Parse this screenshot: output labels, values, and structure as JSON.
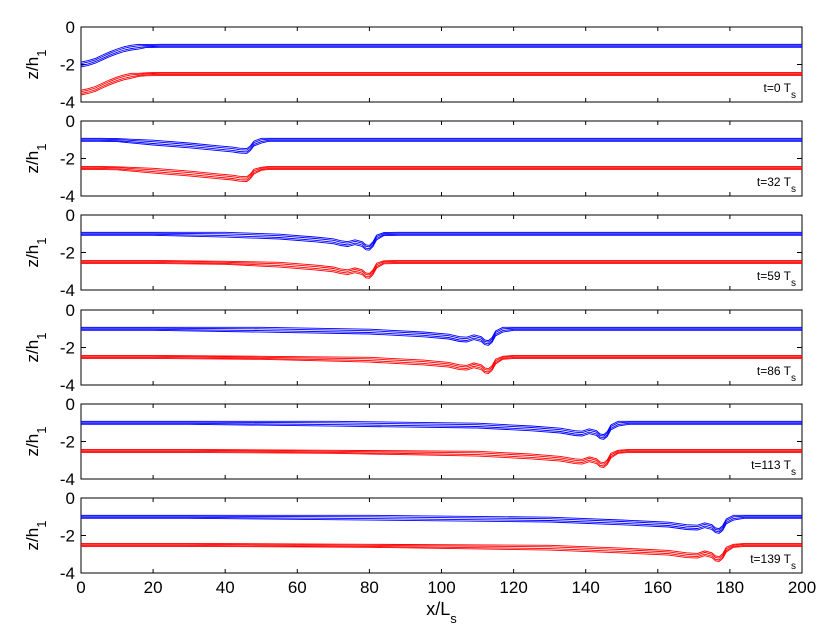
{
  "chart_data": {
    "type": "line",
    "xlabel": "x/L",
    "xlabel_sub": "s",
    "ylabel": "z/h",
    "ylabel_sub": "1",
    "xlim": [
      0,
      200
    ],
    "ylim": [
      -4,
      0
    ],
    "x_ticks": [
      "0",
      "20",
      "40",
      "60",
      "80",
      "100",
      "120",
      "140",
      "160",
      "180",
      "200"
    ],
    "y_ticks": [
      "0",
      "-2",
      "-4"
    ],
    "upper_color": "#0000ff",
    "lower_color": "#ff0000",
    "panels": [
      {
        "label": "t=0 T",
        "label_sub": "s",
        "series": [
          {
            "x": [
              0,
              2,
              4,
              6,
              8,
              10,
              12,
              14,
              16,
              18,
              20,
              22,
              24,
              26,
              200
            ],
            "y": [
              -2.0,
              -1.92,
              -1.8,
              -1.62,
              -1.45,
              -1.3,
              -1.18,
              -1.1,
              -1.05,
              -1.02,
              -1.01,
              -1.0,
              -1.0,
              -1.0,
              -1.0
            ]
          },
          {
            "x": [
              0,
              2,
              4,
              6,
              8,
              10,
              12,
              14,
              16,
              18,
              20,
              22,
              24,
              26,
              200
            ],
            "y": [
              -3.5,
              -3.42,
              -3.3,
              -3.12,
              -2.95,
              -2.8,
              -2.68,
              -2.6,
              -2.55,
              -2.52,
              -2.51,
              -2.5,
              -2.5,
              -2.5,
              -2.5
            ]
          }
        ]
      },
      {
        "label": "t=32 T",
        "label_sub": "s",
        "series": [
          {
            "x": [
              0,
              5,
              10,
              20,
              30,
              38,
              42,
              44,
              46,
              47,
              48,
              50,
              52,
              55,
              60,
              200
            ],
            "y": [
              -1.0,
              -1.0,
              -1.02,
              -1.15,
              -1.3,
              -1.45,
              -1.52,
              -1.58,
              -1.6,
              -1.45,
              -1.2,
              -1.05,
              -1.0,
              -1.0,
              -1.0,
              -1.0
            ]
          },
          {
            "x": [
              0,
              5,
              10,
              20,
              30,
              38,
              42,
              44,
              46,
              47,
              48,
              50,
              52,
              55,
              60,
              200
            ],
            "y": [
              -2.5,
              -2.5,
              -2.52,
              -2.65,
              -2.8,
              -2.95,
              -3.02,
              -3.08,
              -3.1,
              -2.95,
              -2.7,
              -2.55,
              -2.5,
              -2.5,
              -2.5,
              -2.5
            ]
          }
        ]
      },
      {
        "label": "t=59 T",
        "label_sub": "s",
        "series": [
          {
            "x": [
              0,
              20,
              40,
              55,
              65,
              70,
              72,
              74,
              76,
              78,
              79,
              80,
              81,
              82,
              84,
              88,
              200
            ],
            "y": [
              -1.0,
              -1.0,
              -1.05,
              -1.15,
              -1.3,
              -1.4,
              -1.5,
              -1.55,
              -1.45,
              -1.55,
              -1.72,
              -1.75,
              -1.55,
              -1.2,
              -1.02,
              -1.0,
              -1.0
            ]
          },
          {
            "x": [
              0,
              20,
              40,
              55,
              65,
              70,
              72,
              74,
              76,
              78,
              79,
              80,
              81,
              82,
              84,
              88,
              200
            ],
            "y": [
              -2.5,
              -2.5,
              -2.55,
              -2.65,
              -2.8,
              -2.9,
              -3.0,
              -3.05,
              -2.95,
              -3.05,
              -3.22,
              -3.25,
              -3.05,
              -2.7,
              -2.52,
              -2.5,
              -2.5
            ]
          }
        ]
      },
      {
        "label": "t=86 T",
        "label_sub": "s",
        "series": [
          {
            "x": [
              0,
              20,
              50,
              80,
              95,
              102,
              105,
              107,
              109,
              111,
              112,
              113,
              114,
              115,
              117,
              120,
              200
            ],
            "y": [
              -1.0,
              -1.0,
              -1.05,
              -1.15,
              -1.3,
              -1.42,
              -1.55,
              -1.58,
              -1.45,
              -1.55,
              -1.72,
              -1.76,
              -1.6,
              -1.25,
              -1.05,
              -1.0,
              -1.0
            ]
          },
          {
            "x": [
              0,
              20,
              50,
              80,
              95,
              102,
              105,
              107,
              109,
              111,
              112,
              113,
              114,
              115,
              117,
              120,
              200
            ],
            "y": [
              -2.5,
              -2.5,
              -2.55,
              -2.65,
              -2.8,
              -2.92,
              -3.05,
              -3.08,
              -2.95,
              -3.05,
              -3.22,
              -3.26,
              -3.1,
              -2.75,
              -2.55,
              -2.5,
              -2.5
            ]
          }
        ]
      },
      {
        "label": "t=113 T",
        "label_sub": "s",
        "series": [
          {
            "x": [
              0,
              30,
              70,
              110,
              125,
              133,
              137,
              139,
              141,
              143,
              144,
              145,
              146,
              147,
              149,
              152,
              200
            ],
            "y": [
              -1.0,
              -1.0,
              -1.05,
              -1.15,
              -1.3,
              -1.42,
              -1.55,
              -1.58,
              -1.45,
              -1.55,
              -1.72,
              -1.76,
              -1.6,
              -1.25,
              -1.05,
              -1.0,
              -1.0
            ]
          },
          {
            "x": [
              0,
              30,
              70,
              110,
              125,
              133,
              137,
              139,
              141,
              143,
              144,
              145,
              146,
              147,
              149,
              152,
              200
            ],
            "y": [
              -2.5,
              -2.5,
              -2.55,
              -2.65,
              -2.8,
              -2.92,
              -3.05,
              -3.08,
              -2.95,
              -3.05,
              -3.22,
              -3.26,
              -3.1,
              -2.75,
              -2.55,
              -2.5,
              -2.5
            ]
          }
        ]
      },
      {
        "label": "t=139 T",
        "label_sub": "s",
        "series": [
          {
            "x": [
              0,
              30,
              80,
              130,
              150,
              163,
              168,
              171,
              173,
              175,
              176,
              177,
              178,
              179,
              181,
              184,
              200
            ],
            "y": [
              -1.0,
              -1.0,
              -1.05,
              -1.15,
              -1.3,
              -1.42,
              -1.55,
              -1.58,
              -1.45,
              -1.55,
              -1.72,
              -1.76,
              -1.6,
              -1.25,
              -1.05,
              -1.0,
              -1.0
            ]
          },
          {
            "x": [
              0,
              30,
              80,
              130,
              150,
              163,
              168,
              171,
              173,
              175,
              176,
              177,
              178,
              179,
              181,
              184,
              200
            ],
            "y": [
              -2.5,
              -2.5,
              -2.55,
              -2.65,
              -2.8,
              -2.92,
              -3.05,
              -3.08,
              -2.95,
              -3.05,
              -3.22,
              -3.26,
              -3.1,
              -2.75,
              -2.55,
              -2.5,
              -2.5
            ]
          }
        ]
      }
    ]
  }
}
